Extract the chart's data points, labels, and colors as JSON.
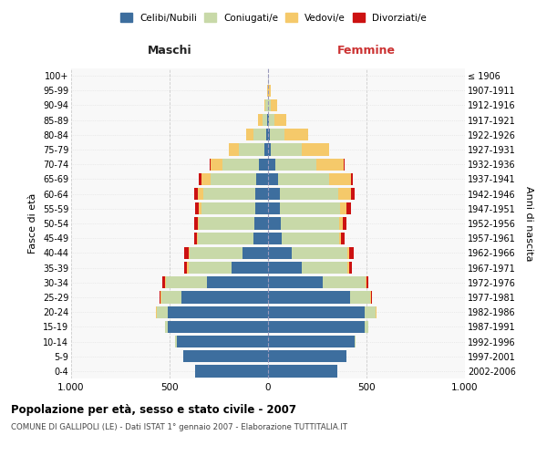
{
  "age_groups": [
    "0-4",
    "5-9",
    "10-14",
    "15-19",
    "20-24",
    "25-29",
    "30-34",
    "35-39",
    "40-44",
    "45-49",
    "50-54",
    "55-59",
    "60-64",
    "65-69",
    "70-74",
    "75-79",
    "80-84",
    "85-89",
    "90-94",
    "95-99",
    "100+"
  ],
  "birth_years": [
    "2002-2006",
    "1997-2001",
    "1992-1996",
    "1987-1991",
    "1982-1986",
    "1977-1981",
    "1972-1976",
    "1967-1971",
    "1962-1966",
    "1957-1961",
    "1952-1956",
    "1947-1951",
    "1942-1946",
    "1937-1941",
    "1932-1936",
    "1927-1931",
    "1922-1926",
    "1917-1921",
    "1912-1916",
    "1907-1911",
    "≤ 1906"
  ],
  "male": {
    "celibi": [
      370,
      430,
      465,
      510,
      510,
      440,
      310,
      185,
      130,
      75,
      70,
      65,
      65,
      60,
      45,
      18,
      8,
      4,
      2,
      0,
      0
    ],
    "coniugati": [
      0,
      0,
      5,
      15,
      55,
      100,
      210,
      220,
      270,
      280,
      280,
      275,
      265,
      230,
      185,
      130,
      65,
      25,
      10,
      2,
      0
    ],
    "vedovi": [
      0,
      0,
      0,
      0,
      5,
      5,
      5,
      5,
      5,
      5,
      8,
      10,
      25,
      50,
      60,
      50,
      40,
      20,
      8,
      2,
      0
    ],
    "divorziati": [
      0,
      0,
      0,
      0,
      0,
      5,
      10,
      15,
      20,
      15,
      18,
      20,
      18,
      12,
      5,
      0,
      0,
      0,
      0,
      0,
      0
    ]
  },
  "female": {
    "nubili": [
      350,
      400,
      440,
      490,
      490,
      415,
      280,
      170,
      120,
      70,
      65,
      60,
      60,
      50,
      35,
      15,
      8,
      4,
      2,
      0,
      0
    ],
    "coniugate": [
      0,
      0,
      5,
      18,
      55,
      105,
      215,
      235,
      285,
      290,
      295,
      305,
      295,
      260,
      210,
      155,
      75,
      28,
      12,
      2,
      0
    ],
    "vedove": [
      0,
      0,
      0,
      0,
      5,
      5,
      5,
      5,
      8,
      12,
      20,
      35,
      65,
      110,
      140,
      140,
      120,
      60,
      30,
      10,
      2
    ],
    "divorziate": [
      0,
      0,
      0,
      0,
      0,
      5,
      10,
      15,
      22,
      15,
      18,
      20,
      20,
      10,
      5,
      0,
      0,
      0,
      0,
      0,
      0
    ]
  },
  "colors": {
    "celibi": "#3d6e9e",
    "coniugati": "#c8d9a8",
    "vedovi": "#f5c96a",
    "divorziati": "#cc1111"
  },
  "xlim": 1000,
  "title": "Popolazione per età, sesso e stato civile - 2007",
  "subtitle": "COMUNE DI GALLIPOLI (LE) - Dati ISTAT 1° gennaio 2007 - Elaborazione TUTTITALIA.IT",
  "ylabel_left": "Fasce di età",
  "ylabel_right": "Anni di nascita",
  "xlabel_left": "Maschi",
  "xlabel_right": "Femmine"
}
